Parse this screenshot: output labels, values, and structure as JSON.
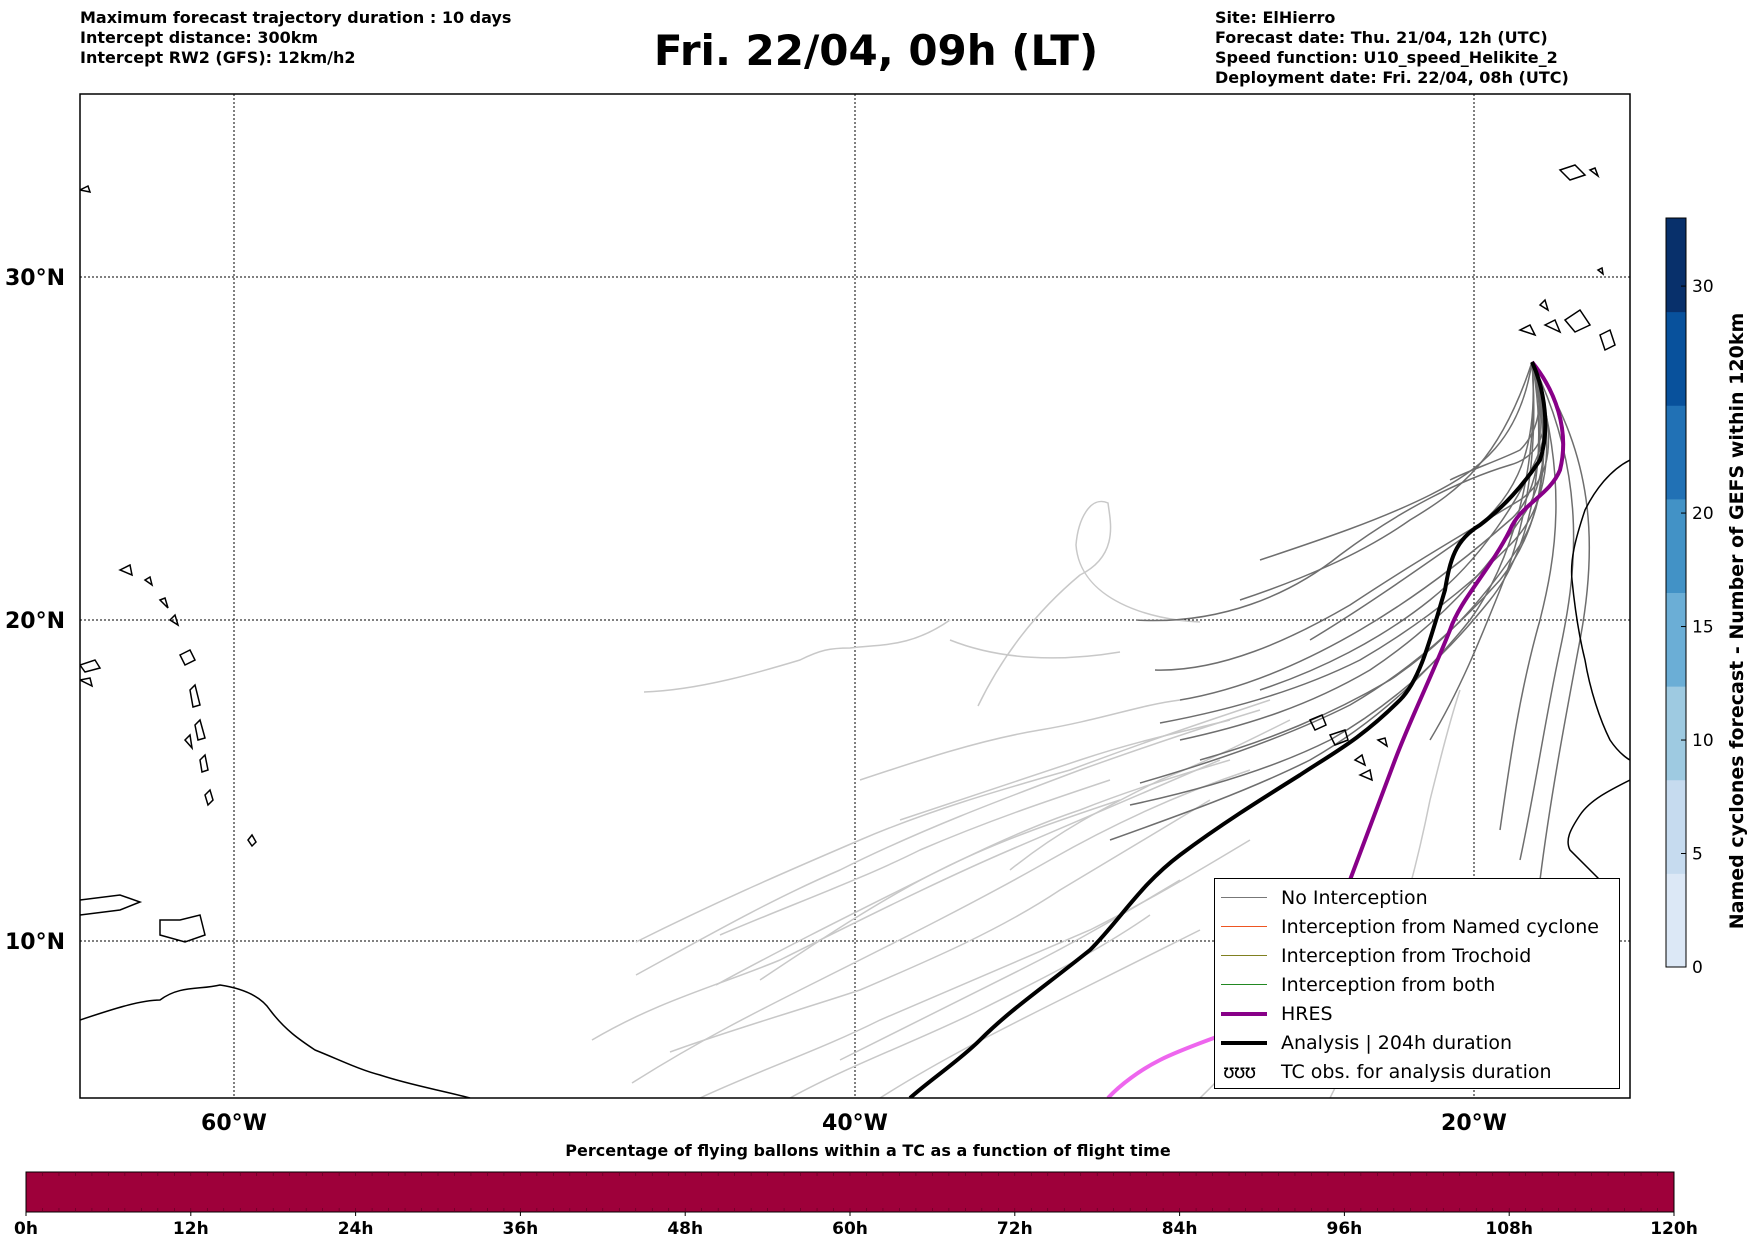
{
  "header": {
    "info_left": [
      "Maximum forecast trajectory duration : 10 days",
      "Intercept distance: 300km",
      "Intercept RW2 (GFS):  12km/h2"
    ],
    "title": "Fri. 22/04, 09h (LT)",
    "info_right": [
      "Site: ElHierro",
      "Forecast date: Thu. 21/04, 12h (UTC)",
      "Speed function: U10_speed_Helikite_2",
      "Deployment date: Fri. 22/04, 08h (UTC)"
    ]
  },
  "map": {
    "lon_range": [
      -65,
      -15
    ],
    "lat_range": [
      5,
      35
    ],
    "lat_labels": [
      "30°N",
      "20°N",
      "10°N"
    ],
    "lon_labels": [
      "60°W",
      "40°W",
      "20°W"
    ],
    "grid": true
  },
  "legend": {
    "items": [
      {
        "label": "No Interception",
        "color": "#777777"
      },
      {
        "label": "Interception from Named cyclone",
        "color": "#ee5522"
      },
      {
        "label": "Interception from Trochoid",
        "color": "#808020"
      },
      {
        "label": "Interception from both",
        "color": "#228822"
      },
      {
        "label": "HRES",
        "color": "#880088"
      },
      {
        "label": "Analysis | 204h duration",
        "color": "#000000"
      },
      {
        "label": "TC obs. for analysis duration",
        "symbol": "ʊʊʊ"
      }
    ]
  },
  "colorbar_right": {
    "label": "Named cyclones forecast - Number of GEFS within 120km",
    "ticks": [
      "0",
      "5",
      "10",
      "15",
      "20",
      "30"
    ],
    "tick_values": [
      0,
      5,
      10,
      15,
      20,
      30
    ],
    "max": 33,
    "colors": [
      "#dce8f6",
      "#c6dbef",
      "#9ecae1",
      "#6baed6",
      "#4292c6",
      "#2171b5",
      "#08519c",
      "#08306b"
    ]
  },
  "colorbar_bottom": {
    "title": "Percentage of flying ballons within a TC as a function of flight time",
    "ticks": [
      "0h",
      "12h",
      "24h",
      "36h",
      "48h",
      "60h",
      "72h",
      "84h",
      "96h",
      "108h",
      "120h"
    ],
    "fill_color": "#9e003a"
  }
}
